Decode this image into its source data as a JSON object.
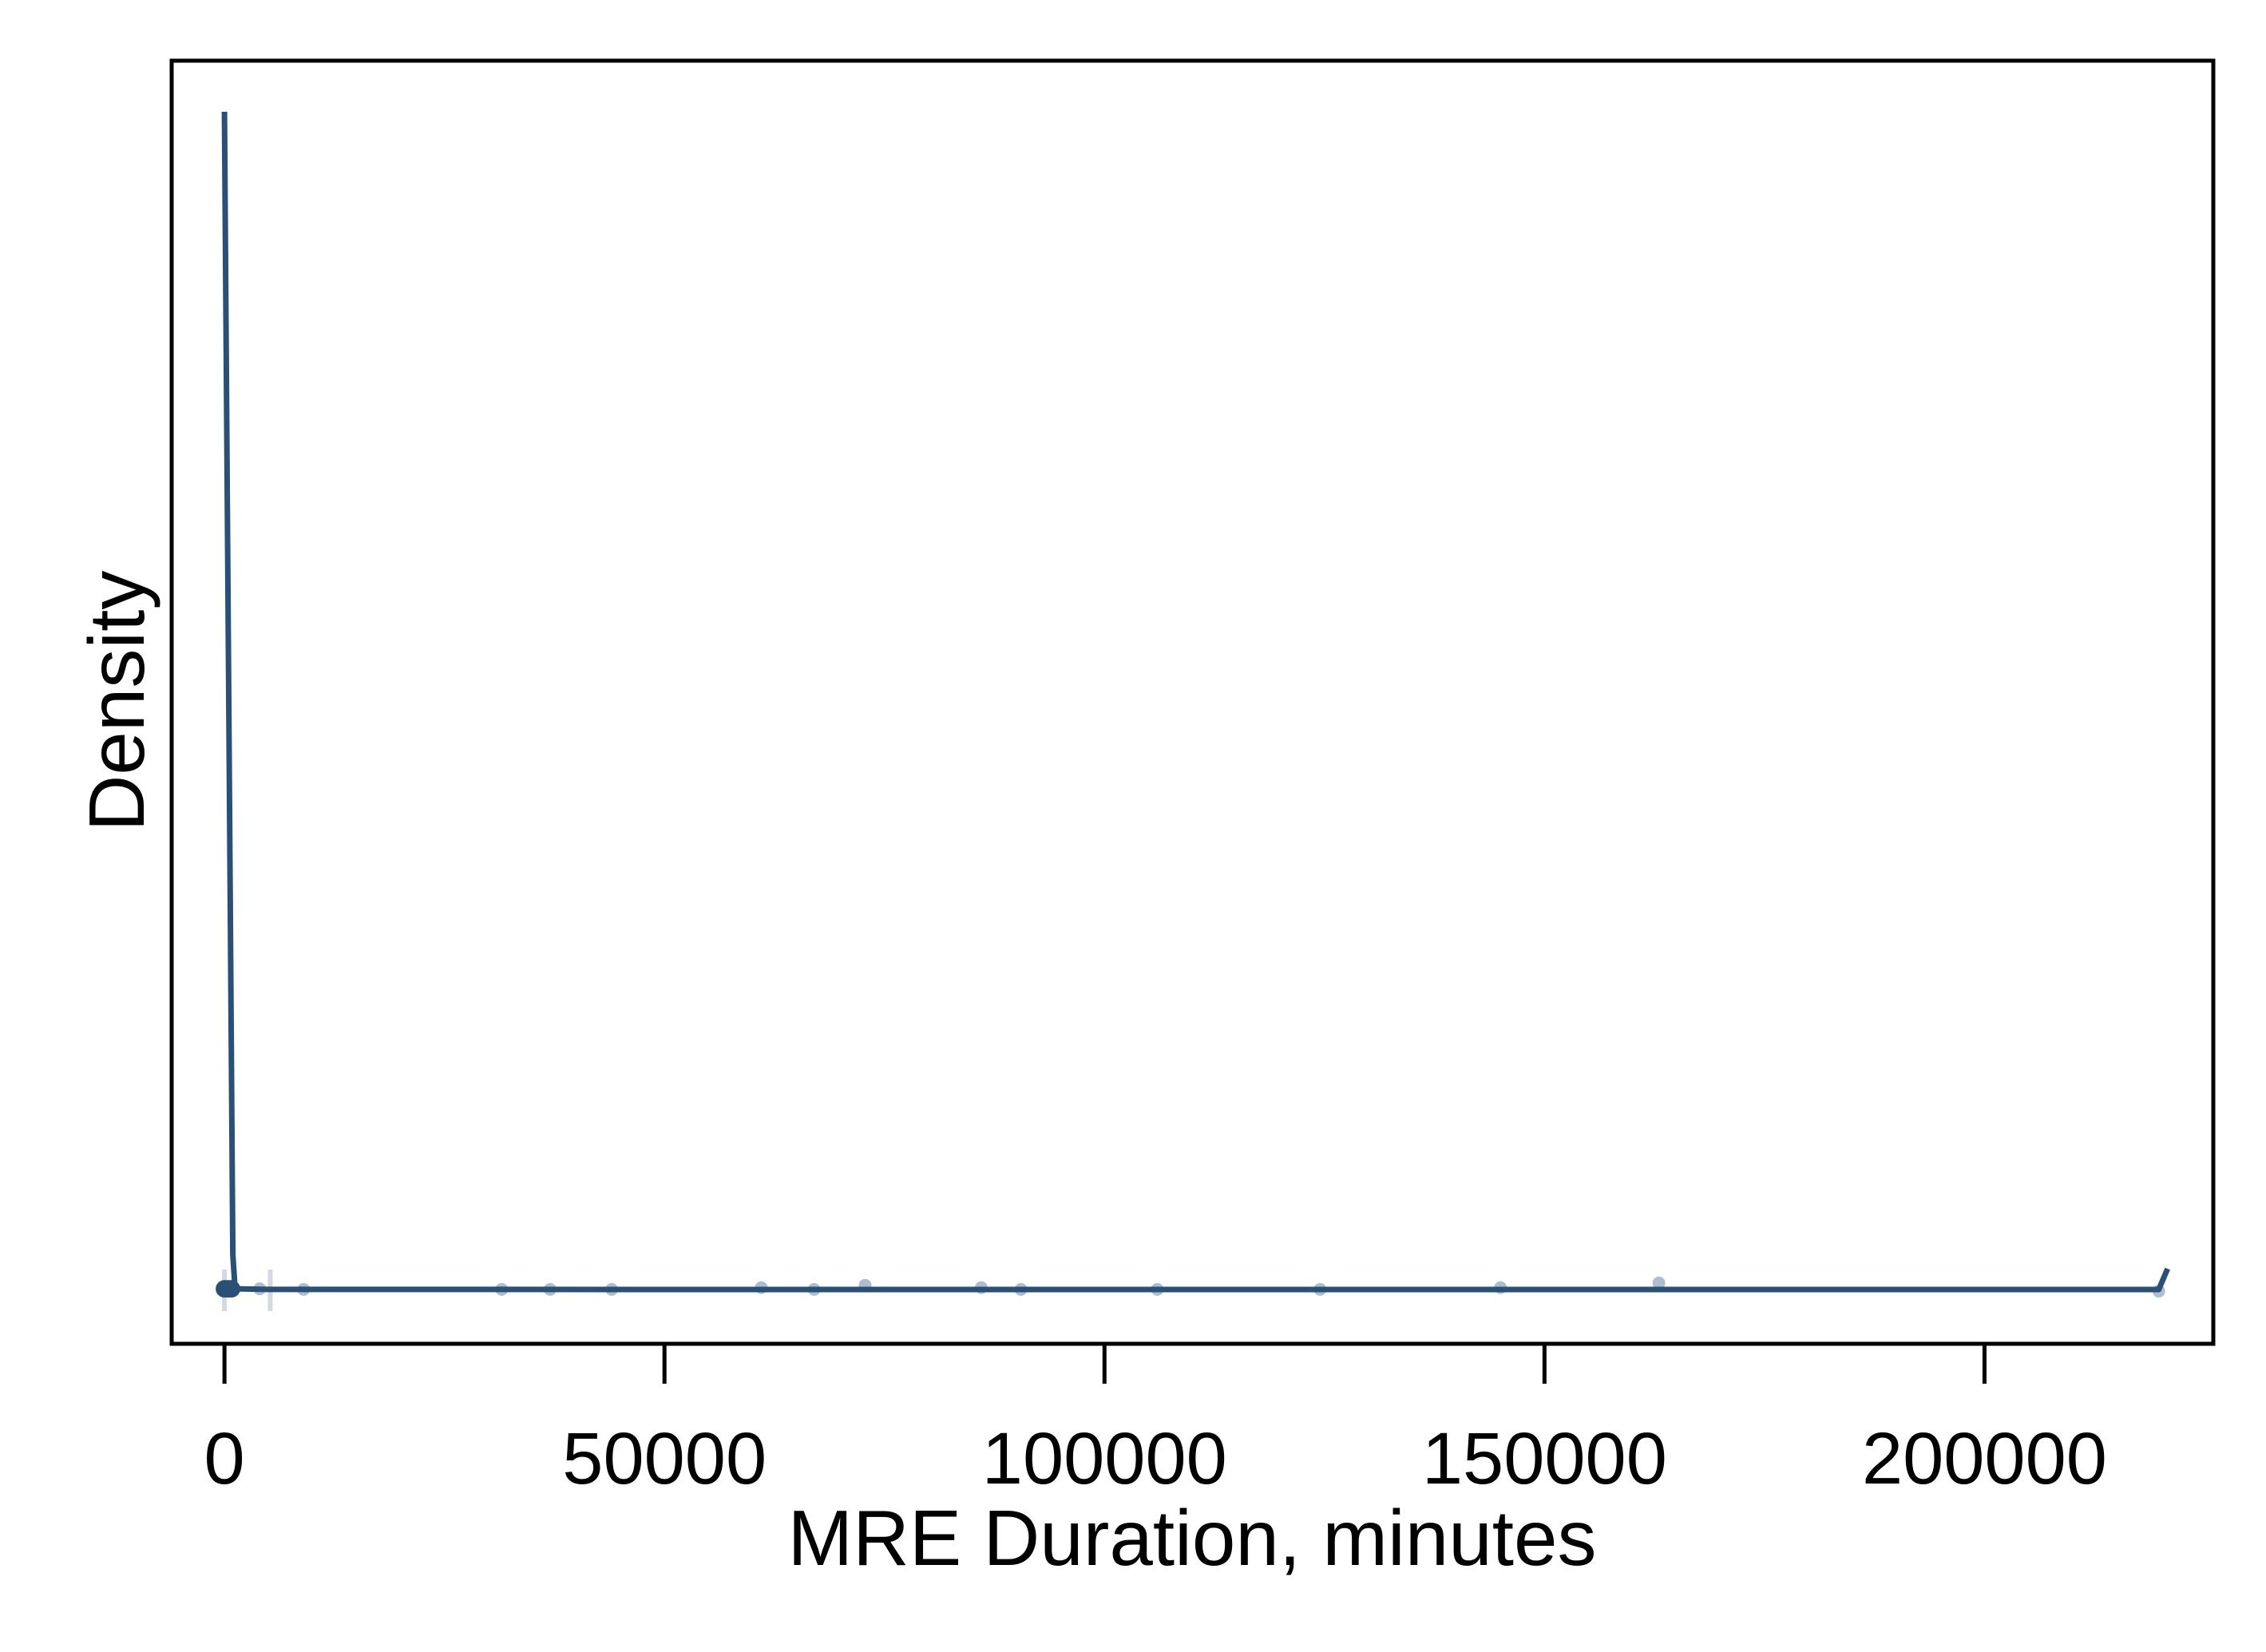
{
  "chart_data": {
    "type": "line",
    "title": "",
    "xlabel": "MRE Duration, minutes",
    "ylabel": "Density",
    "xlim": [
      -6000,
      226000
    ],
    "xticks": [
      0,
      50000,
      100000,
      150000,
      200000
    ],
    "xtick_labels": [
      "0",
      "50000",
      "100000",
      "150000",
      "200000"
    ],
    "yticks": [],
    "grid": false,
    "legend": "none",
    "colors": {
      "line": "#2b5076",
      "points": "#9fb3c6",
      "frame": "#000000",
      "background": "#ffffff"
    },
    "series": [
      {
        "type": "line",
        "x": [
          0,
          950,
          1200,
          5000,
          100000,
          219800,
          220800
        ],
        "y": [
          1.0,
          0.03,
          0.001,
          0.0005,
          0.0004,
          0.0004,
          0.018
        ]
      },
      {
        "type": "scatter",
        "x": [
          0,
          400,
          800,
          4000,
          9000,
          31500,
          37000,
          44000,
          61000,
          67000,
          72800,
          86000,
          90500,
          106000,
          124500,
          145000,
          163000,
          219800
        ],
        "y": [
          0.001,
          0.001,
          0.001,
          0.001,
          0.0005,
          0.0005,
          0.0005,
          0.0005,
          0.002,
          0.0005,
          0.004,
          0.002,
          0.0005,
          0.0005,
          0.0005,
          0.002,
          0.006,
          -0.001
        ]
      },
      {
        "type": "rug",
        "x": [
          0,
          5200
        ]
      }
    ]
  }
}
